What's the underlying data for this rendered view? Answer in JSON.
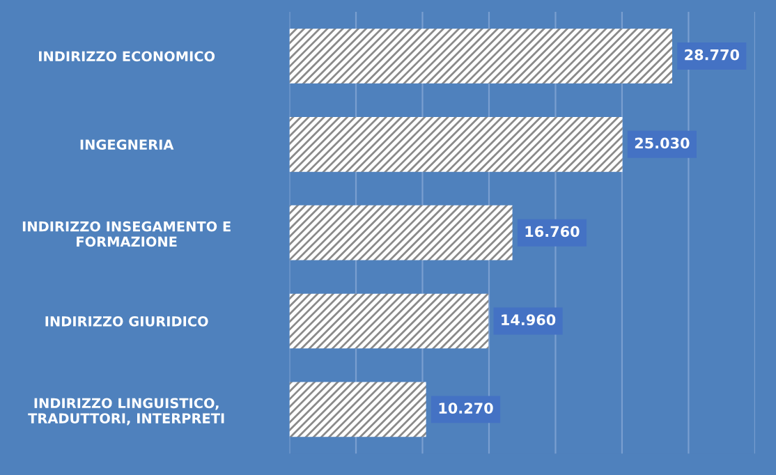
{
  "chart_data": {
    "type": "bar",
    "orientation": "horizontal",
    "categories": [
      "INDIRIZZO ECONOMICO",
      "INGEGNERIA",
      "INDIRIZZO INSEGAMENTO E\nFORMAZIONE",
      "INDIRIZZO GIURIDICO",
      "INDIRIZZO LINGUISTICO,\nTRADUTTORI, INTERPRETI"
    ],
    "values": [
      28770,
      25030,
      16760,
      14960,
      10270
    ],
    "value_labels": [
      "28.770",
      "25.030",
      "16.760",
      "14.960",
      "10.270"
    ],
    "color": "#ffffff",
    "xlim": [
      0,
      35000
    ],
    "xticks": [
      {
        "value": 0,
        "label": null
      },
      {
        "value": 5000,
        "label": null
      },
      {
        "value": 10000,
        "label": null
      },
      {
        "value": 15000,
        "label": null
      },
      {
        "value": 20000,
        "label": null
      },
      {
        "value": 25000,
        "label": null
      },
      {
        "value": 30000,
        "label": null
      },
      {
        "value": 35000,
        "label": null
      }
    ],
    "grid": "x",
    "tick_labels": "y"
  }
}
